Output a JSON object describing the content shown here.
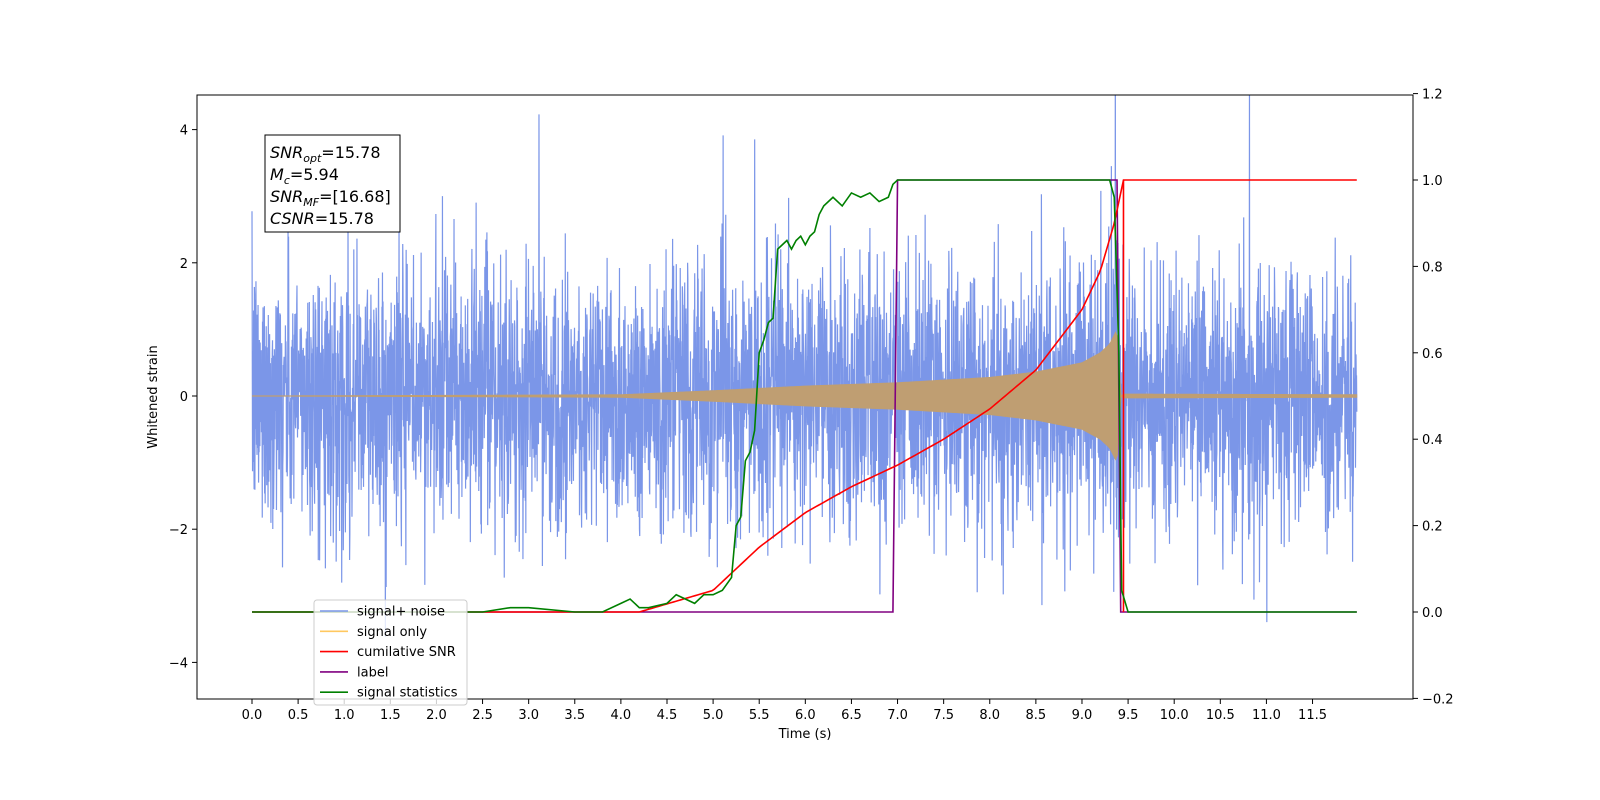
{
  "chart_data": {
    "type": "line",
    "title": "",
    "xlabel": "Time (s)",
    "ylabel": "Whitened strain",
    "ylabel_right": "",
    "xlim": [
      -0.6,
      12.55
    ],
    "ylim": [
      -4.5,
      4.55
    ],
    "ylim_right": [
      -0.2,
      1.2
    ],
    "x_ticks": [
      "0.0",
      "0.5",
      "1.0",
      "1.5",
      "2.0",
      "2.5",
      "3.0",
      "3.5",
      "4.0",
      "4.5",
      "5.0",
      "5.5",
      "6.0",
      "6.5",
      "7.0",
      "7.5",
      "8.0",
      "8.5",
      "9.0",
      "9.5",
      "10.0",
      "10.5",
      "11.0",
      "11.5"
    ],
    "y_ticks_left": [
      "−4",
      "−2",
      "0",
      "2",
      "4"
    ],
    "y_ticks_right": [
      "−0.2",
      "0.0",
      "0.2",
      "0.4",
      "0.6",
      "0.8",
      "1.0",
      "1.2"
    ],
    "grid": false,
    "legend_position": "lower-left",
    "info_box": {
      "position": "upper-left",
      "lines": [
        {
          "sym": "SNR",
          "sub": "opt",
          "val": "=15.78"
        },
        {
          "sym": "M",
          "sub": "c",
          "val": "=5.94"
        },
        {
          "sym": "SNR",
          "sub": "MF",
          "val": "=[16.68]"
        },
        {
          "sym": "CSNR",
          "sub": "",
          "val": "=15.78"
        }
      ]
    },
    "series": [
      {
        "name": "signal+ noise",
        "color": "#7b96e8",
        "axis": "left",
        "noise_std": 1.0,
        "x_start": 0.0,
        "x_end": 11.98
      },
      {
        "name": "signal only",
        "color": "#bf9e72",
        "axis": "left",
        "envelope": {
          "x": [
            0.0,
            4.0,
            5.0,
            6.0,
            7.0,
            8.0,
            8.5,
            9.0,
            9.2,
            9.3,
            9.38,
            9.42,
            9.45,
            11.98
          ],
          "amp": [
            0.0,
            0.02,
            0.08,
            0.15,
            0.2,
            0.28,
            0.36,
            0.5,
            0.65,
            0.78,
            1.0,
            0.0,
            0.03,
            0.02
          ]
        }
      },
      {
        "name": "cumilative SNR",
        "color": "#ff0000",
        "axis": "right",
        "x": [
          4.2,
          5.0,
          5.5,
          6.0,
          6.5,
          7.0,
          7.5,
          8.0,
          8.5,
          9.0,
          9.2,
          9.35,
          9.45,
          9.5,
          11.98
        ],
        "values": [
          0.0,
          0.05,
          0.15,
          0.23,
          0.29,
          0.34,
          0.4,
          0.47,
          0.56,
          0.7,
          0.79,
          0.9,
          1.0,
          1.0,
          1.0
        ],
        "x_drop": 9.45,
        "x_end": 11.98
      },
      {
        "name": "label",
        "color": "#800080",
        "axis": "right",
        "x": [
          0.0,
          6.95,
          7.0,
          9.38,
          9.42,
          11.98
        ],
        "values": [
          0.0,
          0.0,
          1.0,
          1.0,
          0.0,
          0.0
        ]
      },
      {
        "name": "signal statistics",
        "color": "#008000",
        "axis": "right",
        "x": [
          0.0,
          2.5,
          2.8,
          3.0,
          3.5,
          3.8,
          4.0,
          4.1,
          4.2,
          4.3,
          4.5,
          4.6,
          4.8,
          4.9,
          5.0,
          5.1,
          5.2,
          5.25,
          5.3,
          5.35,
          5.4,
          5.45,
          5.5,
          5.55,
          5.6,
          5.65,
          5.7,
          5.8,
          5.85,
          5.9,
          5.95,
          6.0,
          6.05,
          6.1,
          6.15,
          6.2,
          6.3,
          6.4,
          6.5,
          6.6,
          6.7,
          6.8,
          6.9,
          6.95,
          7.0,
          7.1,
          7.2,
          9.3,
          9.35,
          9.4,
          9.43,
          9.5,
          11.98
        ],
        "values": [
          0.0,
          0.0,
          0.01,
          0.01,
          0.0,
          0.0,
          0.02,
          0.03,
          0.01,
          0.01,
          0.02,
          0.04,
          0.02,
          0.04,
          0.04,
          0.05,
          0.08,
          0.2,
          0.22,
          0.35,
          0.37,
          0.42,
          0.6,
          0.63,
          0.67,
          0.68,
          0.84,
          0.86,
          0.84,
          0.86,
          0.87,
          0.85,
          0.87,
          0.88,
          0.92,
          0.94,
          0.96,
          0.94,
          0.97,
          0.96,
          0.97,
          0.95,
          0.96,
          0.99,
          1.0,
          1.0,
          1.0,
          1.0,
          0.96,
          0.6,
          0.05,
          0.0,
          0.0
        ]
      }
    ]
  }
}
